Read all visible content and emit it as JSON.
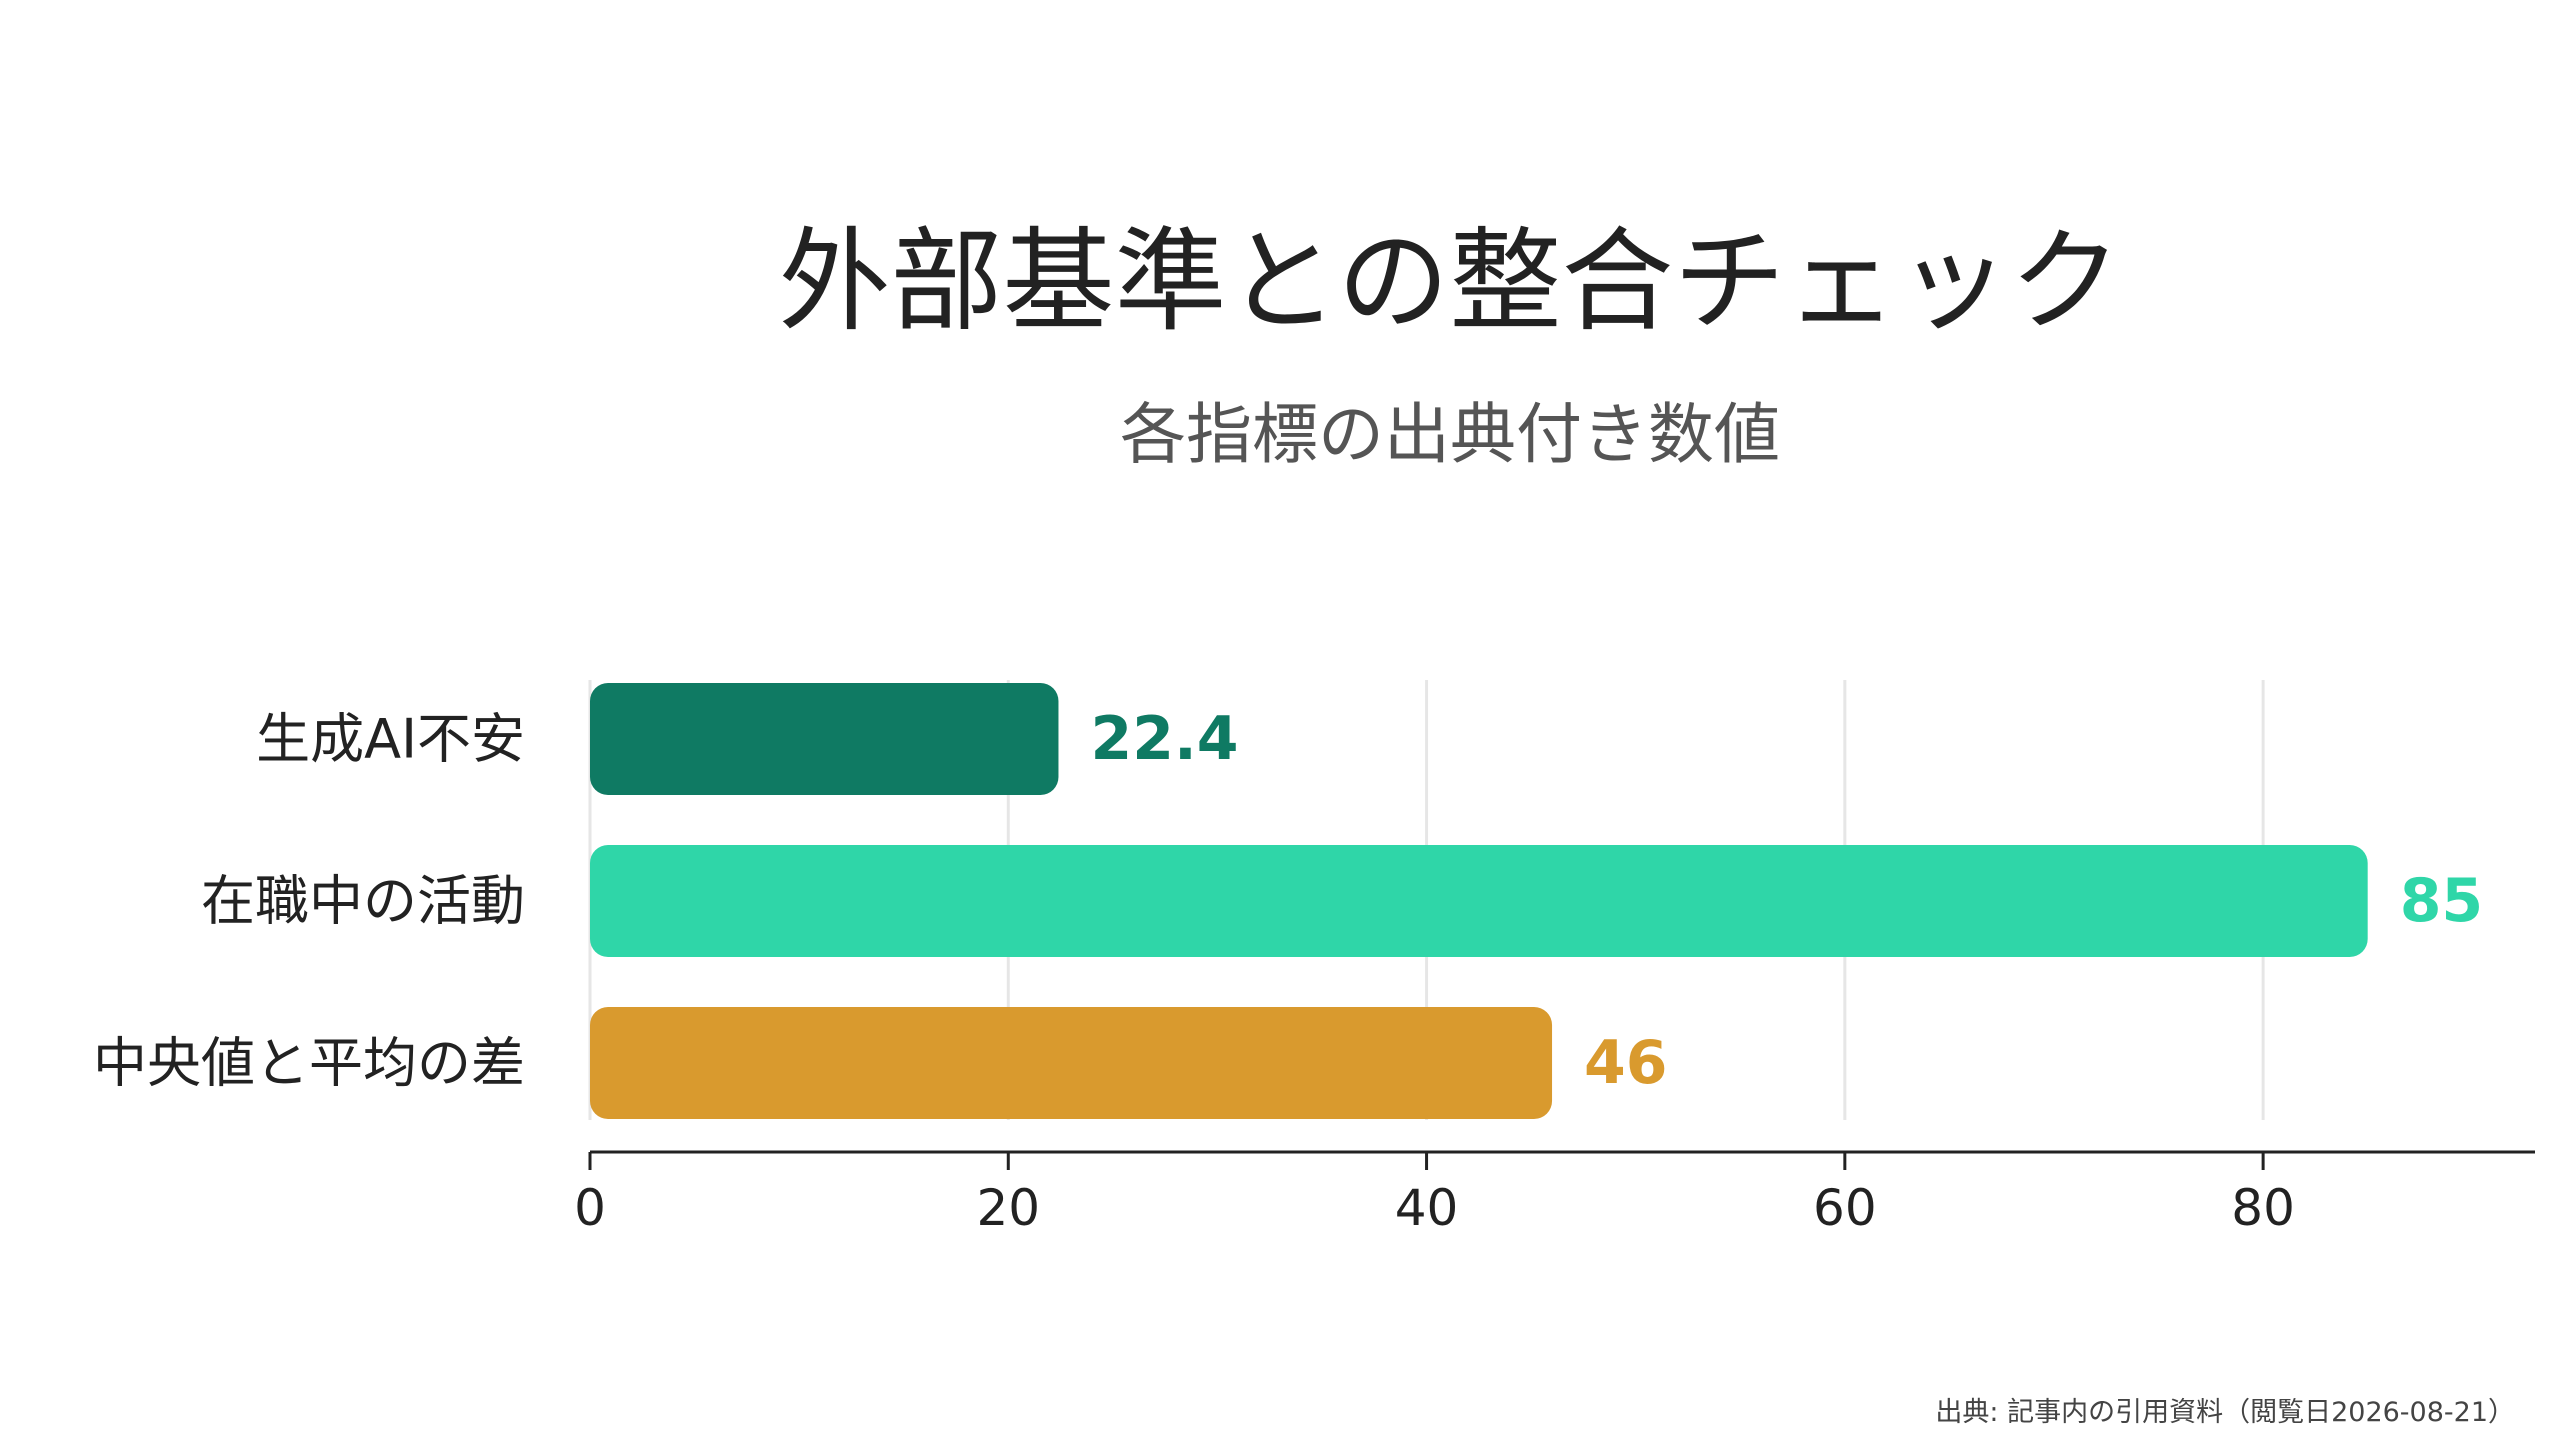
{
  "chart_data": {
    "type": "bar",
    "orientation": "horizontal",
    "title": "外部基準との整合チェック",
    "subtitle": "各指標の出典付き数値",
    "categories": [
      "生成AI不安",
      "在職中の活動",
      "中央値と平均の差"
    ],
    "values": [
      22.4,
      85,
      46
    ],
    "value_labels": [
      "22.4",
      "85",
      "46"
    ],
    "colors": [
      "#0f7a63",
      "#2fd6a8",
      "#d99a2e"
    ],
    "xlim": [
      0,
      93
    ],
    "xticks": [
      0,
      20,
      40,
      60,
      80
    ],
    "xtick_labels": [
      "0",
      "20",
      "40",
      "60",
      "80"
    ],
    "grid": true,
    "xlabel": "",
    "ylabel": ""
  },
  "source": "出典: 記事内の引用資料（閲覧日2026-08-21）"
}
